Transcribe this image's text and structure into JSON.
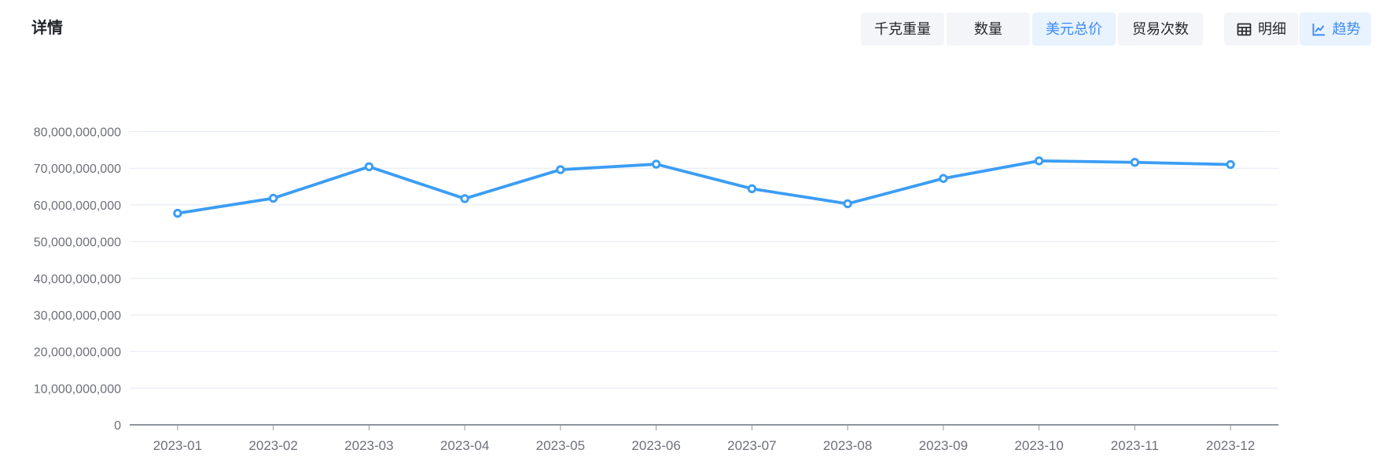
{
  "page": {
    "title": "详情"
  },
  "toolbar": {
    "metric_tabs": [
      {
        "label": "千克重量",
        "active": false
      },
      {
        "label": "数量",
        "active": false
      },
      {
        "label": "美元总价",
        "active": true
      },
      {
        "label": "贸易次数",
        "active": false
      }
    ],
    "view_tabs": [
      {
        "label": "明细",
        "icon": "table-icon",
        "active": false
      },
      {
        "label": "趋势",
        "icon": "trend-icon",
        "active": true
      }
    ]
  },
  "colors": {
    "accent": "#3d8af5",
    "accent_bg": "#e8f3ff",
    "button_bg": "#f4f5f9",
    "button_text": "#25272c",
    "line": "#3b9df5",
    "grid_line": "#e4e9f2",
    "axis_line": "#8f939b",
    "axis_label": "#6e7079"
  },
  "chart_data": {
    "type": "line",
    "title": "",
    "xlabel": "",
    "ylabel": "",
    "legend_position": "none",
    "grid": true,
    "categories": [
      "2023-01",
      "2023-02",
      "2023-03",
      "2023-04",
      "2023-05",
      "2023-06",
      "2023-07",
      "2023-08",
      "2023-09",
      "2023-10",
      "2023-11",
      "2023-12"
    ],
    "series": [
      {
        "name": "美元总价",
        "values": [
          57700000000,
          61800000000,
          70400000000,
          61700000000,
          69600000000,
          71100000000,
          64400000000,
          60300000000,
          67200000000,
          72000000000,
          71600000000,
          71000000000
        ]
      }
    ],
    "ylim": [
      0,
      80000000000
    ],
    "y_tick_interval": 10000000000,
    "y_tick_labels": [
      "0",
      "10,000,000,000",
      "20,000,000,000",
      "30,000,000,000",
      "40,000,000,000",
      "50,000,000,000",
      "60,000,000,000",
      "70,000,000,000",
      "80,000,000,000"
    ]
  }
}
